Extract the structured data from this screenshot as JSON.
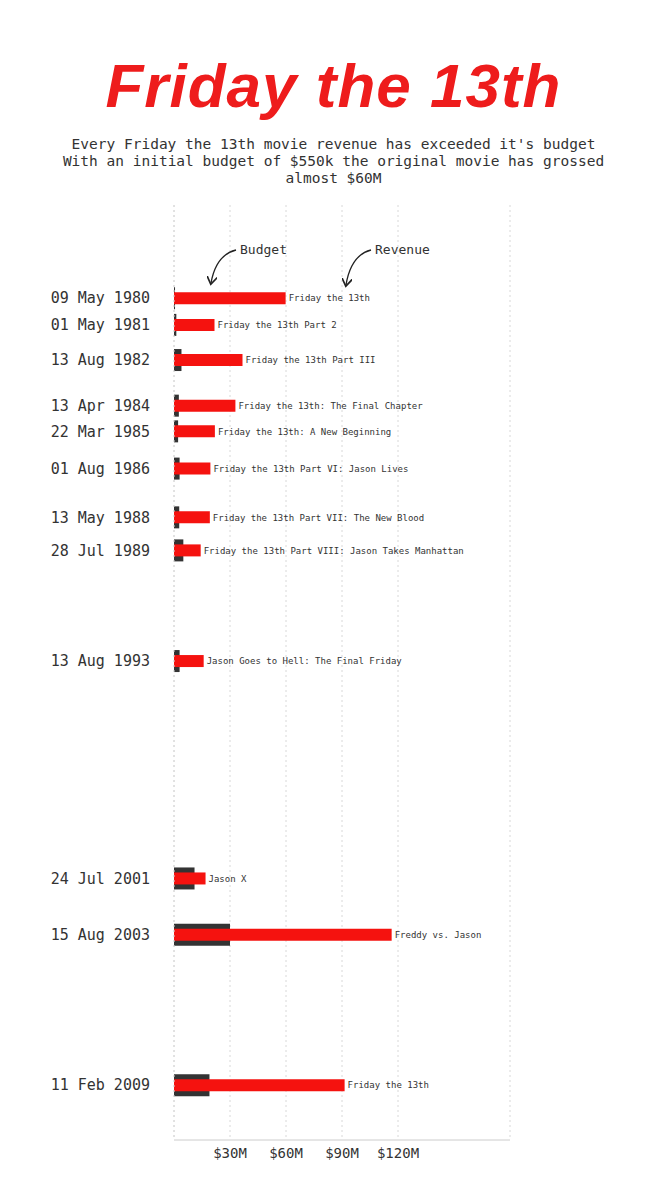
{
  "chart_data": {
    "type": "bar",
    "title": "Friday the 13th",
    "subtitle": [
      "Every Friday the 13th movie revenue has exceeded it's budget",
      "With an initial budget of $550k the original movie has grossed almost $60M"
    ],
    "orientation": "horizontal",
    "categories": [
      "11 Feb 2009",
      "15 Aug 2003",
      "24 Jul 2001",
      "13 Aug 1993",
      "28 Jul 1989",
      "13 May 1988",
      "01 Aug 1986",
      "22 Mar 1985",
      "13 Apr 1984",
      "13 Aug 1982",
      "01 May 1981",
      "09 May 1980"
    ],
    "labels": [
      "Friday the 13th",
      "Freddy vs. Jason",
      "Jason X",
      "Jason Goes to Hell: The Final Friday",
      "Friday the 13th Part VIII: Jason Takes Manhattan",
      "Friday the 13th Part VII: The New Blood",
      "Friday the 13th Part VI: Jason Lives",
      "Friday the 13th: A New Beginning",
      "Friday the 13th: The Final Chapter",
      "Friday the 13th Part III",
      "Friday the 13th Part 2",
      "Friday the 13th"
    ],
    "series": [
      {
        "name": "Budget",
        "color": "#333333",
        "values": [
          19,
          30,
          11,
          3,
          5,
          2.8,
          3,
          2.2,
          2.6,
          4,
          1.25,
          0.55
        ]
      },
      {
        "name": "Revenue",
        "color": "#f5120f",
        "values": [
          91.4,
          116.6,
          16.9,
          15.9,
          14.3,
          19.2,
          19.5,
          21.9,
          32.9,
          36.7,
          21.7,
          59.8
        ]
      }
    ],
    "xlim": [
      0,
      180
    ],
    "xticks": [
      {
        "value": 30,
        "label": "$30M"
      },
      {
        "value": 60,
        "label": "$60M"
      },
      {
        "value": 90,
        "label": "$90M"
      },
      {
        "value": 120,
        "label": "$120M"
      }
    ],
    "grid": true
  }
}
